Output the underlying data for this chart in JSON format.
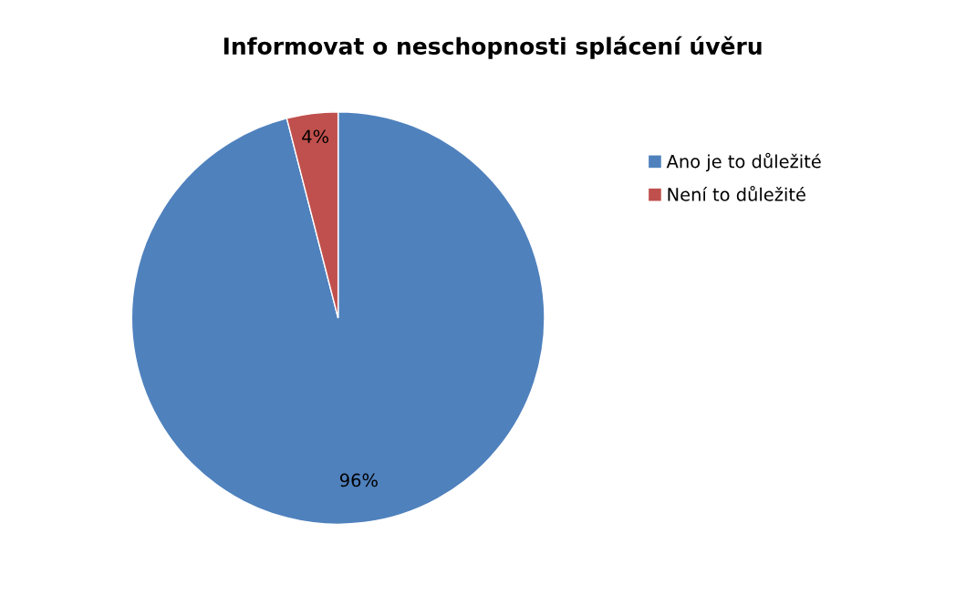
{
  "chart_data": {
    "type": "pie",
    "title": "Informovat o neschopnosti splácení úvěru",
    "categories": [
      "Ano je to důležité",
      "Není to důležité"
    ],
    "values": [
      96,
      4
    ],
    "colors": [
      "#4f81bd",
      "#c0504d"
    ],
    "value_labels": [
      "96%",
      "4%"
    ],
    "legend": "right"
  }
}
